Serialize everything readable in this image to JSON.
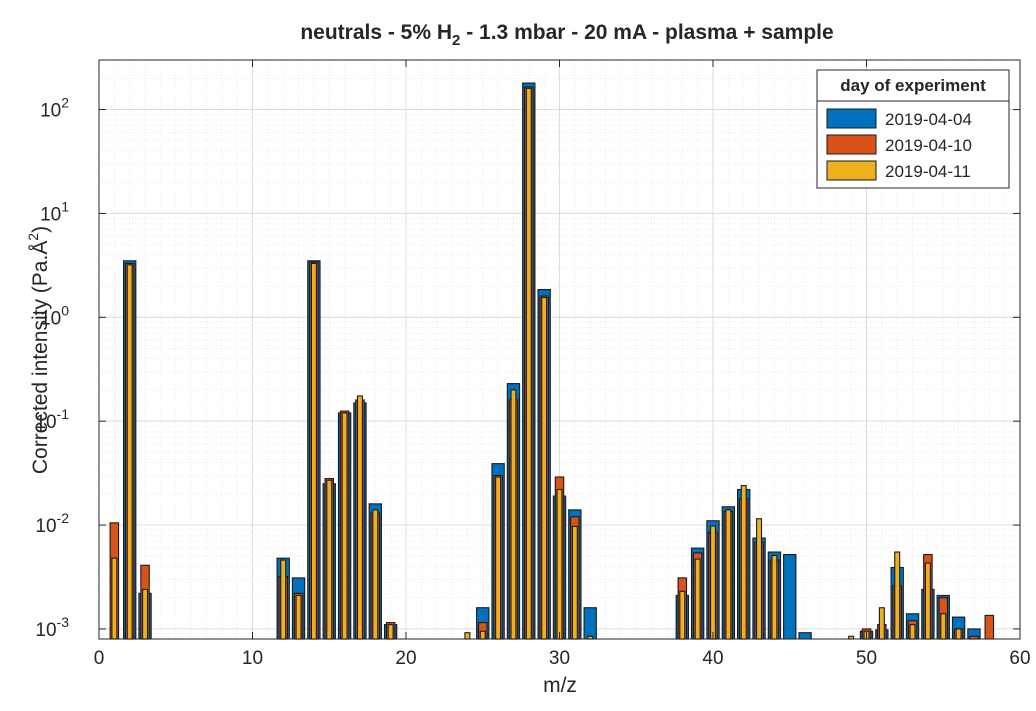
{
  "chart_data": {
    "type": "bar",
    "title": "neutrals - 5% H",
    "title_sub": "2",
    "title_rest": " - 1.3 mbar - 20 mA - plasma + sample",
    "xlabel": "m/z",
    "ylabel": "Corrected intensity (Pa.Å",
    "ylabel_sup": "2",
    "ylabel_end": ")",
    "xlim": [
      0,
      60
    ],
    "ylim": [
      0.0008,
      300
    ],
    "yscale": "log",
    "grid": true,
    "legend_position": "top-right",
    "legend_title": "day of experiment",
    "x_ticks": [
      "0",
      "10",
      "20",
      "30",
      "40",
      "50",
      "60"
    ],
    "y_ticks": [
      {
        "base": "10",
        "exp": "-3",
        "value": 0.001
      },
      {
        "base": "10",
        "exp": "-2",
        "value": 0.01
      },
      {
        "base": "10",
        "exp": "-1",
        "value": 0.1
      },
      {
        "base": "10",
        "exp": "0",
        "value": 1
      },
      {
        "base": "10",
        "exp": "1",
        "value": 10
      },
      {
        "base": "10",
        "exp": "2",
        "value": 100
      }
    ],
    "x": [
      1,
      2,
      3,
      12,
      13,
      14,
      15,
      16,
      17,
      18,
      19,
      24,
      25,
      26,
      27,
      28,
      29,
      30,
      31,
      32,
      38,
      39,
      40,
      41,
      42,
      43,
      44,
      45,
      46,
      49,
      50,
      51,
      52,
      53,
      54,
      55,
      56,
      57,
      58
    ],
    "series": [
      {
        "name": "2019-04-04",
        "color": "#0072BD",
        "values": [
          null,
          3.5,
          0.0022,
          0.0048,
          0.0031,
          3.5,
          0.025,
          0.12,
          0.15,
          0.016,
          0.0011,
          null,
          0.0016,
          0.039,
          0.23,
          180,
          1.85,
          0.019,
          0.014,
          0.0016,
          0.0021,
          0.006,
          0.011,
          0.015,
          0.022,
          0.0075,
          0.0055,
          0.0052,
          0.00092,
          null,
          0.00095,
          0.00098,
          0.0039,
          0.0014,
          0.0024,
          0.0021,
          0.0013,
          0.001,
          null
        ]
      },
      {
        "name": "2019-04-10",
        "color": "#D95319",
        "values": [
          0.0105,
          3.3,
          0.0041,
          0.0032,
          0.0022,
          3.4,
          0.028,
          0.125,
          0.16,
          0.013,
          0.00115,
          null,
          0.00115,
          0.03,
          0.16,
          165,
          1.6,
          0.029,
          0.012,
          null,
          0.0031,
          0.0054,
          0.0085,
          0.0135,
          0.018,
          0.0068,
          0.0046,
          null,
          null,
          null,
          0.001,
          0.0011,
          0.0026,
          0.0012,
          0.0052,
          0.002,
          0.001,
          0.00085,
          0.00135
        ]
      },
      {
        "name": "2019-04-11",
        "color": "#EDB120",
        "values": [
          0.0048,
          3.2,
          0.0024,
          0.0046,
          0.0021,
          3.3,
          0.027,
          0.12,
          0.175,
          0.014,
          0.0011,
          0.00092,
          0.00095,
          0.029,
          0.2,
          160,
          1.55,
          0.022,
          0.0097,
          0.00085,
          0.0023,
          0.0047,
          0.0098,
          0.014,
          0.024,
          0.0115,
          0.0051,
          null,
          null,
          0.00085,
          0.00095,
          0.0016,
          0.0055,
          0.0011,
          0.0043,
          0.0014,
          0.001,
          null,
          null
        ]
      }
    ]
  }
}
